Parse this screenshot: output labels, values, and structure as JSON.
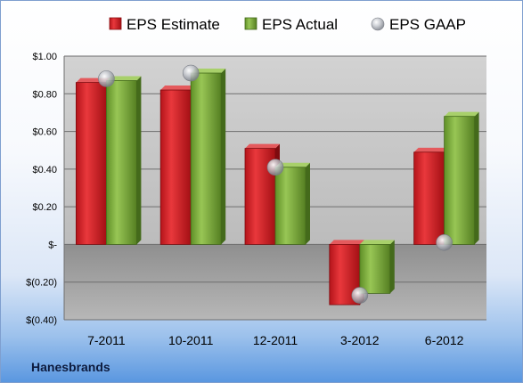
{
  "chart_data": {
    "type": "bar",
    "categories": [
      "7-2011",
      "10-2011",
      "12-2011",
      "3-2012",
      "6-2012"
    ],
    "series": [
      {
        "name": "EPS Estimate",
        "values": [
          0.86,
          0.82,
          0.51,
          -0.32,
          0.49
        ],
        "color": "#d42025"
      },
      {
        "name": "EPS Actual",
        "values": [
          0.87,
          0.91,
          0.41,
          -0.26,
          0.68
        ],
        "color": "#7fae3e"
      },
      {
        "name": "EPS GAAP",
        "values": [
          0.88,
          0.91,
          0.41,
          -0.27,
          0.01
        ],
        "color": "#b8bcc4",
        "marker": "sphere"
      }
    ],
    "ylim": [
      -0.4,
      1.0
    ],
    "yticks": [
      1.0,
      0.8,
      0.6,
      0.4,
      0.2,
      0,
      -0.2,
      -0.4
    ],
    "ytick_labels": [
      "$1.00",
      "$0.80",
      "$0.60",
      "$0.40",
      "$0.20",
      "$-",
      "$(0.20)",
      "$(0.40)"
    ],
    "grid": true,
    "legend_position": "top",
    "company": "Hanesbrands"
  }
}
